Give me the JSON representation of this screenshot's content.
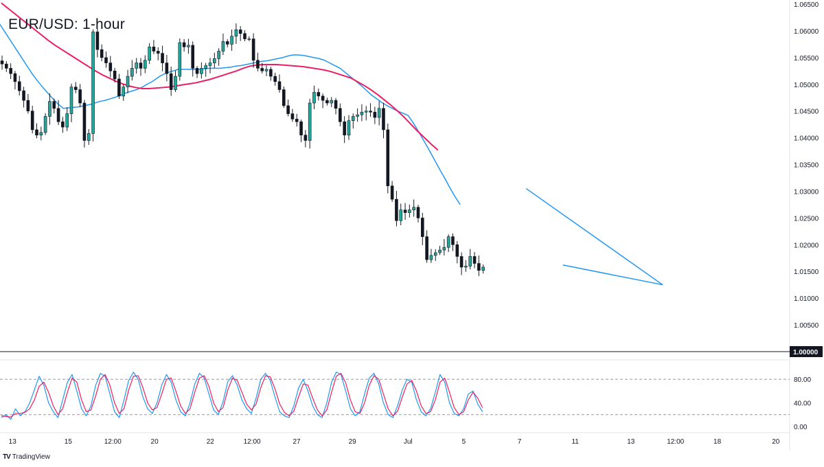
{
  "title": "EUR/USD: 1-hour",
  "brand": {
    "logo": "TV",
    "name": "TradingView"
  },
  "colors": {
    "up": "#26a69a",
    "down": "#131722",
    "ma_fast": "#2196f3",
    "ma_slow": "#e91e63",
    "trendline": "#2196f3",
    "stoch_k": "#2196f3",
    "stoch_d": "#e91e63",
    "axis_text": "#131722"
  },
  "chart_data": [
    {
      "type": "candlestick",
      "title": "EUR/USD: 1-hour",
      "x_range": [
        0,
        141
      ],
      "ylim": [
        1.0,
        1.065
      ],
      "y_ticks": [
        "1.06500",
        "1.06000",
        "1.05500",
        "1.05000",
        "1.04500",
        "1.04000",
        "1.03500",
        "1.03000",
        "1.02500",
        "1.02000",
        "1.01500",
        "1.01000",
        "1.00500"
      ],
      "x_tick_labels": [
        {
          "x": 2,
          "label": "13"
        },
        {
          "x": 12,
          "label": "15"
        },
        {
          "x": 20,
          "label": "12:00"
        },
        {
          "x": 27.5,
          "label": "20"
        },
        {
          "x": 37.5,
          "label": "22"
        },
        {
          "x": 45,
          "label": "12:00"
        },
        {
          "x": 53,
          "label": "27"
        },
        {
          "x": 63,
          "label": "29"
        },
        {
          "x": 73,
          "label": "Jul"
        },
        {
          "x": 83,
          "label": "5"
        },
        {
          "x": 93,
          "label": "7"
        },
        {
          "x": 103,
          "label": "11"
        },
        {
          "x": 113,
          "label": "13"
        },
        {
          "x": 121,
          "label": "12:00"
        },
        {
          "x": 128.5,
          "label": "18"
        },
        {
          "x": 139,
          "label": "20"
        }
      ],
      "horizontal_line": {
        "value": 1.0,
        "label": "1.00000"
      },
      "series": [
        {
          "name": "",
          "kind": "price",
          "close": [
            1.0538,
            1.053,
            1.052,
            1.0505,
            1.0488,
            1.047,
            1.045,
            1.0415,
            1.0405,
            1.041,
            1.044,
            1.0468,
            1.0455,
            1.043,
            1.042,
            1.0445,
            1.0495,
            1.049,
            1.0465,
            1.0395,
            1.0408,
            1.0598,
            1.0565,
            1.055,
            1.054,
            1.0525,
            1.051,
            1.0478,
            1.0495,
            1.0515,
            1.053,
            1.054,
            1.053,
            1.0545,
            1.057,
            1.0562,
            1.0558,
            1.054,
            1.052,
            1.049,
            1.0515,
            1.0578,
            1.057,
            1.0573,
            1.053,
            1.052,
            1.053,
            1.0535,
            1.054,
            1.0548,
            1.0562,
            1.058,
            1.0575,
            1.059,
            1.0602,
            1.0595,
            1.0585,
            1.0585,
            1.0545,
            1.053,
            1.0525,
            1.0528,
            1.0515,
            1.0505,
            1.049,
            1.046,
            1.0445,
            1.0435,
            1.043,
            1.0405,
            1.0395,
            1.0465,
            1.0485,
            1.0478,
            1.047,
            1.0465,
            1.047,
            1.0455,
            1.043,
            1.0405,
            1.0432,
            1.044,
            1.0443,
            1.0448,
            1.045,
            1.0448,
            1.0438,
            1.0455,
            1.0415,
            1.031,
            1.0285,
            1.0245,
            1.0265,
            1.026,
            1.0265,
            1.027,
            1.025,
            1.0215,
            1.0172,
            1.018,
            1.0185,
            1.019,
            1.0195,
            1.0215,
            1.02,
            1.0178,
            1.0158,
            1.016,
            1.0178,
            1.0165,
            1.0152,
            1.0158
          ],
          "ma_fast": [
            1.064,
            1.0625,
            1.061,
            1.0595,
            1.058,
            1.0565,
            1.055,
            1.0535,
            1.052,
            1.0507,
            1.0495,
            1.0484,
            1.0473,
            1.0463,
            1.0455,
            1.0456,
            1.0457,
            1.0458,
            1.046,
            1.0462,
            1.0465,
            1.0468,
            1.047,
            1.0473,
            1.0476,
            1.048,
            1.0484,
            1.0487,
            1.049,
            1.0494,
            1.05,
            1.0505,
            1.0512,
            1.0518,
            1.0522,
            1.0525,
            1.0528,
            1.0528,
            1.0528,
            1.0528,
            1.0528,
            1.0529,
            1.053,
            1.053,
            1.053,
            1.0531,
            1.0532,
            1.0534,
            1.0535,
            1.0537,
            1.0539,
            1.0541,
            1.0543,
            1.0544,
            1.0546,
            1.0548,
            1.055,
            1.0553,
            1.0555,
            1.0555,
            1.0554,
            1.0552,
            1.055,
            1.0548,
            1.0545,
            1.054,
            1.0535,
            1.053,
            1.0522,
            1.0514,
            1.0506,
            1.0498,
            1.0489,
            1.048,
            1.0473,
            1.0466,
            1.046,
            1.0455,
            1.045,
            1.0446,
            1.0442,
            1.0428,
            1.0412,
            1.0395,
            1.0378,
            1.036,
            1.0342,
            1.0325,
            1.0307,
            1.029,
            1.0275
          ],
          "ma_fast_x0": 4,
          "ma_slow": [
            1.0652,
            1.0642,
            1.0632,
            1.0622,
            1.0612,
            1.0602,
            1.0592,
            1.0582,
            1.0573,
            1.0565,
            1.0557,
            1.0549,
            1.0541,
            1.0533,
            1.0525,
            1.0518,
            1.0512,
            1.0506,
            1.0501,
            1.0497,
            1.0494,
            1.0492,
            1.0492,
            1.0493,
            1.0494,
            1.0495,
            1.0497,
            1.0499,
            1.0501,
            1.0503,
            1.0506,
            1.0509,
            1.0513,
            1.0517,
            1.0521,
            1.0525,
            1.053,
            1.0534,
            1.0536,
            1.0537,
            1.0537,
            1.0537,
            1.0536,
            1.0535,
            1.0534,
            1.0533,
            1.0531,
            1.0529,
            1.0527,
            1.0524,
            1.052,
            1.0516,
            1.0512,
            1.0505,
            1.0498,
            1.049,
            1.0481,
            1.0471,
            1.0461,
            1.045,
            1.0438,
            1.0425,
            1.0412,
            1.04,
            1.0388,
            1.0377
          ],
          "ma_slow_x0": 10,
          "candle_x0": 0,
          "candle_dx": 0.778
        }
      ],
      "trendlines": [
        {
          "name": "",
          "from": {
            "x": 94.2,
            "y": 1.0305
          },
          "to": {
            "x": 118.7,
            "y": 1.0125
          }
        },
        {
          "name": "",
          "from": {
            "x": 100.8,
            "y": 1.0162
          },
          "to": {
            "x": 118.7,
            "y": 1.0125
          }
        }
      ]
    },
    {
      "type": "line",
      "kind": "stochastic",
      "ylim": [
        0,
        100
      ],
      "y_ticks": [
        "80.00",
        "40.00",
        "0.00"
      ],
      "levels": [
        80,
        20
      ],
      "series": [
        {
          "name": "",
          "values": [
            15,
            20,
            12,
            30,
            18,
            25,
            40,
            62,
            85,
            70,
            40,
            25,
            15,
            45,
            75,
            88,
            60,
            30,
            18,
            35,
            70,
            90,
            85,
            55,
            25,
            15,
            45,
            78,
            92,
            80,
            50,
            30,
            22,
            40,
            70,
            88,
            75,
            45,
            25,
            18,
            40,
            72,
            90,
            82,
            55,
            28,
            20,
            42,
            76,
            86,
            70,
            45,
            30,
            22,
            48,
            80,
            90,
            78,
            50,
            25,
            18,
            15,
            35,
            65,
            80,
            60,
            35,
            20,
            15,
            40,
            75,
            92,
            88,
            60,
            30,
            18,
            25,
            55,
            82,
            90,
            72,
            40,
            20,
            15,
            35,
            62,
            80,
            75,
            45,
            25,
            18,
            30,
            58,
            88,
            75,
            40,
            22,
            18,
            30,
            55,
            60,
            38,
            25
          ]
        },
        {
          "name": "",
          "values": [
            18,
            17,
            16,
            22,
            22,
            24,
            30,
            45,
            68,
            75,
            58,
            35,
            20,
            30,
            58,
            82,
            75,
            45,
            25,
            28,
            52,
            80,
            88,
            70,
            40,
            22,
            30,
            62,
            85,
            86,
            66,
            40,
            28,
            32,
            55,
            80,
            82,
            60,
            35,
            22,
            30,
            58,
            82,
            86,
            68,
            40,
            25,
            32,
            62,
            82,
            78,
            58,
            38,
            28,
            38,
            66,
            86,
            84,
            64,
            38,
            24,
            18,
            26,
            50,
            72,
            70,
            48,
            28,
            18,
            28,
            58,
            85,
            90,
            74,
            45,
            25,
            22,
            40,
            70,
            86,
            80,
            55,
            30,
            18,
            26,
            50,
            72,
            78,
            60,
            35,
            22,
            25,
            45,
            75,
            82,
            58,
            32,
            20,
            25,
            45,
            58,
            48,
            32
          ]
        }
      ],
      "x0": 0,
      "dx": 0.778
    }
  ]
}
